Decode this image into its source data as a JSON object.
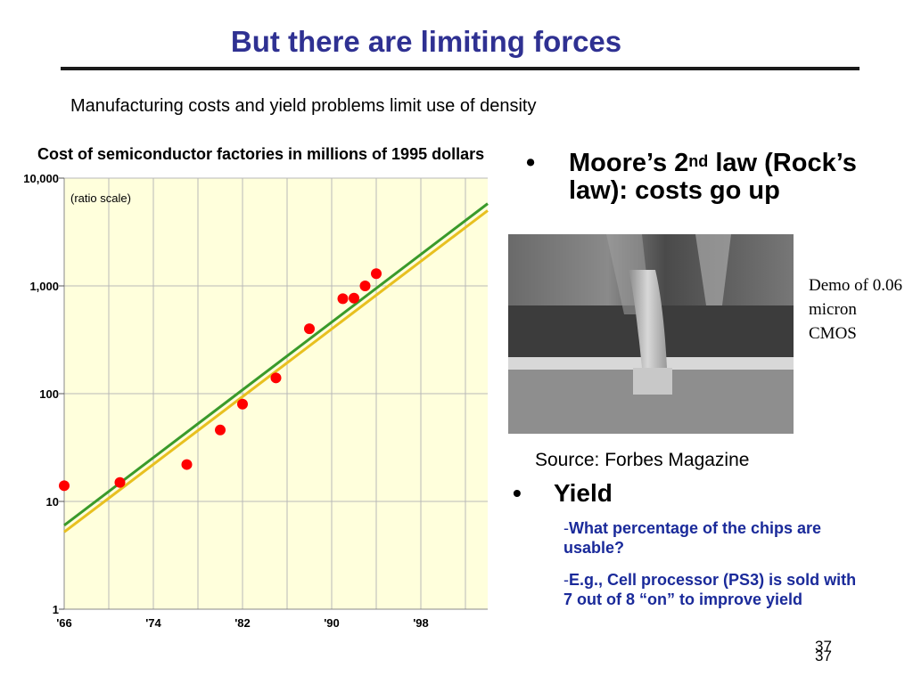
{
  "slide": {
    "title": "But there are limiting forces",
    "subtitle": "Manufacturing costs and yield problems limit use of density",
    "bullet1": {
      "marker": "•",
      "text_a": "Moore’s 2",
      "sup": "nd",
      "text_b": " law (Rock’s law): costs go up"
    },
    "photo_caption": "Demo of 0.06 micron CMOS",
    "source": "Source: Forbes Magazine",
    "bullet2": {
      "marker": "•",
      "text": "Yield"
    },
    "sub1": {
      "dash": "-",
      "text": "What percentage of the chips are usable?"
    },
    "sub2": {
      "dash": "-",
      "text": "E.g., Cell processor (PS3) is sold with 7 out of 8 “on” to improve yield"
    },
    "page_number_a": "37",
    "page_number_b": "37"
  },
  "chart_data": {
    "type": "scatter",
    "title": "Cost of semiconductor factories in millions of 1995 dollars",
    "scale_note": "(ratio scale)",
    "y_scale": "log",
    "ylim": [
      1,
      10000
    ],
    "xlim": [
      1966,
      2004
    ],
    "y_tick_labels": [
      "10,000",
      "1,000",
      "100",
      "10",
      "1"
    ],
    "y_tick_values": [
      10000,
      1000,
      100,
      10,
      1
    ],
    "x_tick_labels": [
      "'66",
      "'74",
      "'82",
      "'90",
      "'98"
    ],
    "x_tick_values": [
      1966,
      1974,
      1982,
      1990,
      1998
    ],
    "grid": true,
    "background": "#ffffdc",
    "points": [
      {
        "x": 1966,
        "y": 14
      },
      {
        "x": 1971,
        "y": 15
      },
      {
        "x": 1977,
        "y": 22
      },
      {
        "x": 1980,
        "y": 46
      },
      {
        "x": 1982,
        "y": 80
      },
      {
        "x": 1985,
        "y": 140
      },
      {
        "x": 1988,
        "y": 400
      },
      {
        "x": 1991,
        "y": 760
      },
      {
        "x": 1992,
        "y": 770
      },
      {
        "x": 1993,
        "y": 1000
      },
      {
        "x": 1994,
        "y": 1300
      }
    ],
    "trend_lines": [
      {
        "color": "#3a9a2a",
        "from": {
          "x": 1966,
          "y": 6
        },
        "to": {
          "x": 2004,
          "y": 5800
        }
      },
      {
        "color": "#e8c020",
        "from": {
          "x": 1966,
          "y": 5.2
        },
        "to": {
          "x": 2004,
          "y": 5000
        }
      }
    ],
    "point_color": "#ff0000"
  }
}
